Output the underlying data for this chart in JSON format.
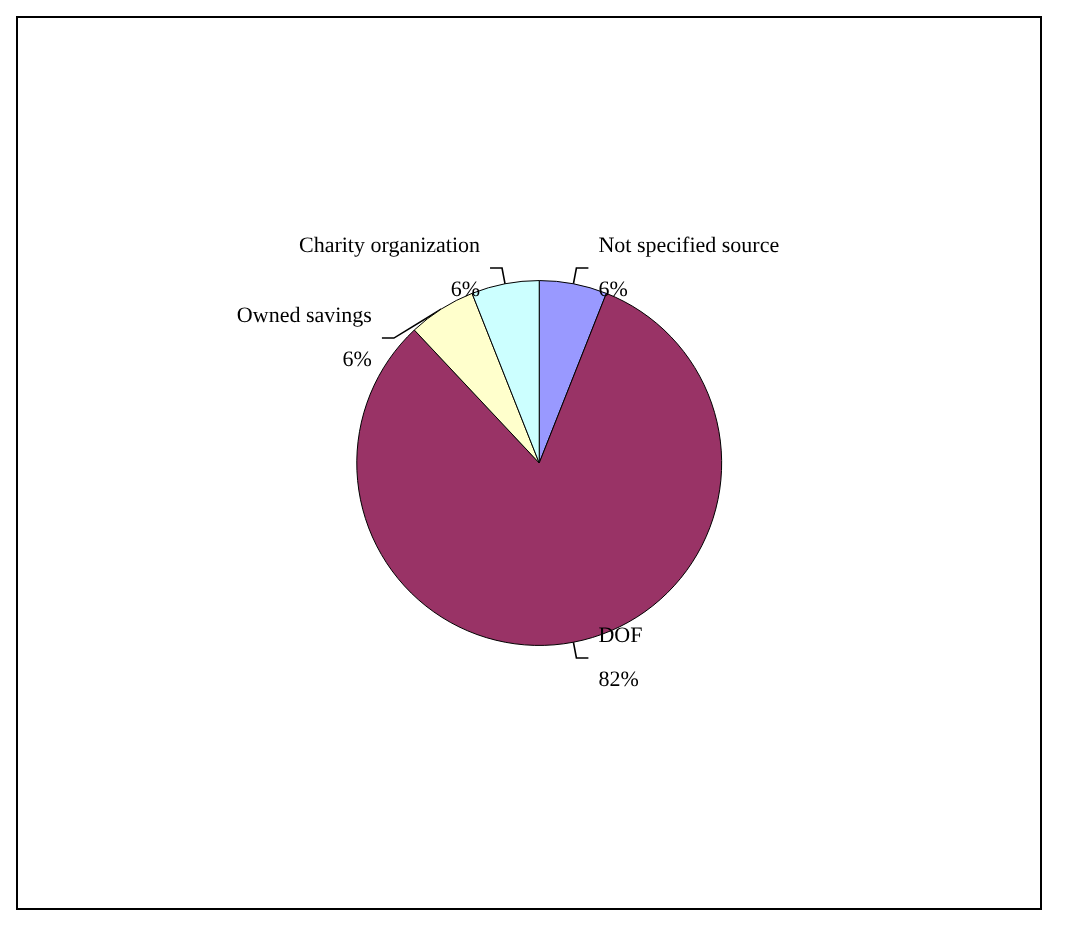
{
  "chart_data": {
    "type": "pie",
    "categories": [
      "Not specified source",
      "DOF",
      "Owned savings",
      "Charity organization"
    ],
    "values": [
      6,
      82,
      6,
      6
    ],
    "colors": [
      "#9999ff",
      "#993366",
      "#ffffcc",
      "#ccffff"
    ],
    "value_labels": [
      "6%",
      "82%",
      "6%",
      "6%"
    ],
    "legend": false
  }
}
